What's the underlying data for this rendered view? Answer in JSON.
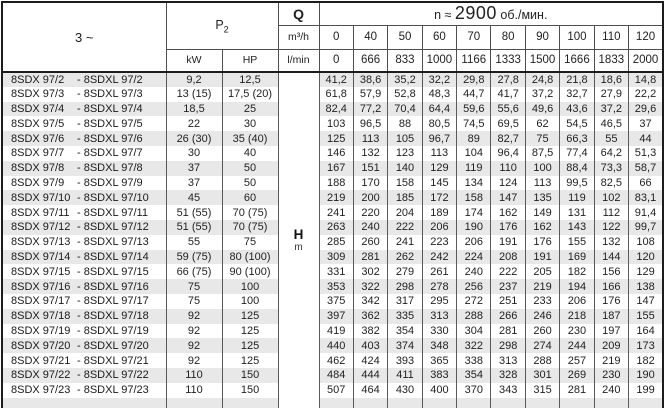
{
  "table": {
    "phase_label": "3 ~",
    "p2_label": "P",
    "p2_sub": "2",
    "kw_label": "kW",
    "hp_label": "HP",
    "q_label": "Q",
    "q_unit_flow": "m³/h",
    "q_unit_lmin": "l/min",
    "speed_prefix": "n ≈",
    "speed_value": "2900",
    "speed_suffix": "об./мин.",
    "head_label": "H",
    "head_unit": "m",
    "flow_values": [
      "0",
      "40",
      "50",
      "60",
      "70",
      "80",
      "90",
      "100",
      "110",
      "120"
    ],
    "lmin_values": [
      "0",
      "666",
      "833",
      "1000",
      "1166",
      "1333",
      "1500",
      "1666",
      "1833",
      "2000"
    ],
    "rows": [
      {
        "model_a": "8SDX 97/2",
        "model_b": "- 8SDXL 97/2",
        "kw": "9,2",
        "hp": "12,5",
        "h": [
          "41,2",
          "38,6",
          "35,2",
          "32,2",
          "29,8",
          "27,8",
          "24,8",
          "21,8",
          "18,6",
          "14,8"
        ]
      },
      {
        "model_a": "8SDX 97/3",
        "model_b": "- 8SDXL 97/3",
        "kw": "13 (15)",
        "hp": "17,5 (20)",
        "h": [
          "61,8",
          "57,9",
          "52,8",
          "48,3",
          "44,7",
          "41,7",
          "37,2",
          "32,7",
          "27,9",
          "22,2"
        ]
      },
      {
        "model_a": "8SDX 97/4",
        "model_b": "- 8SDXL 97/4",
        "kw": "18,5",
        "hp": "25",
        "h": [
          "82,4",
          "77,2",
          "70,4",
          "64,4",
          "59,6",
          "55,6",
          "49,6",
          "43,6",
          "37,2",
          "29,6"
        ]
      },
      {
        "model_a": "8SDX 97/5",
        "model_b": "- 8SDXL 97/5",
        "kw": "22",
        "hp": "30",
        "h": [
          "103",
          "96,5",
          "88",
          "80,5",
          "74,5",
          "69,5",
          "62",
          "54,5",
          "46,5",
          "37"
        ]
      },
      {
        "model_a": "8SDX 97/6",
        "model_b": "- 8SDXL 97/6",
        "kw": "26 (30)",
        "hp": "35 (40)",
        "h": [
          "125",
          "113",
          "105",
          "96,7",
          "89",
          "82,7",
          "75",
          "66,3",
          "55",
          "44"
        ]
      },
      {
        "model_a": "8SDX 97/7",
        "model_b": "- 8SDXL 97/7",
        "kw": "30",
        "hp": "40",
        "h": [
          "146",
          "132",
          "123",
          "113",
          "104",
          "96,4",
          "87,5",
          "77,4",
          "64,2",
          "51,3"
        ]
      },
      {
        "model_a": "8SDX 97/8",
        "model_b": "- 8SDXL 97/8",
        "kw": "37",
        "hp": "50",
        "h": [
          "167",
          "151",
          "140",
          "129",
          "119",
          "110",
          "100",
          "88,4",
          "73,3",
          "58,7"
        ]
      },
      {
        "model_a": "8SDX 97/9",
        "model_b": "- 8SDXL 97/9",
        "kw": "37",
        "hp": "50",
        "h": [
          "188",
          "170",
          "158",
          "145",
          "134",
          "124",
          "113",
          "99,5",
          "82,5",
          "66"
        ]
      },
      {
        "model_a": "8SDX 97/10",
        "model_b": "- 8SDXL 97/10",
        "kw": "45",
        "hp": "60",
        "h": [
          "219",
          "200",
          "185",
          "172",
          "158",
          "147",
          "135",
          "119",
          "102",
          "83,1"
        ]
      },
      {
        "model_a": "8SDX 97/11",
        "model_b": "- 8SDXL 97/11",
        "kw": "51 (55)",
        "hp": "70 (75)",
        "h": [
          "241",
          "220",
          "204",
          "189",
          "174",
          "162",
          "149",
          "131",
          "112",
          "91,4"
        ]
      },
      {
        "model_a": "8SDX 97/12",
        "model_b": "- 8SDXL 97/12",
        "kw": "51 (55)",
        "hp": "70 (75)",
        "h": [
          "263",
          "240",
          "222",
          "206",
          "190",
          "176",
          "162",
          "143",
          "122",
          "99,7"
        ]
      },
      {
        "model_a": "8SDX 97/13",
        "model_b": "- 8SDXL 97/13",
        "kw": "55",
        "hp": "75",
        "h": [
          "285",
          "260",
          "241",
          "223",
          "206",
          "191",
          "176",
          "155",
          "132",
          "108"
        ]
      },
      {
        "model_a": "8SDX 97/14",
        "model_b": "- 8SDXL 97/14",
        "kw": "59 (75)",
        "hp": "80 (100)",
        "h": [
          "309",
          "281",
          "262",
          "242",
          "224",
          "208",
          "191",
          "169",
          "144",
          "120"
        ]
      },
      {
        "model_a": "8SDX 97/15",
        "model_b": "- 8SDXL 97/15",
        "kw": "66 (75)",
        "hp": "90 (100)",
        "h": [
          "331",
          "302",
          "279",
          "261",
          "240",
          "222",
          "205",
          "182",
          "156",
          "129"
        ]
      },
      {
        "model_a": "8SDX 97/16",
        "model_b": "- 8SDXL 97/16",
        "kw": "75",
        "hp": "100",
        "h": [
          "353",
          "322",
          "298",
          "278",
          "256",
          "237",
          "219",
          "194",
          "166",
          "138"
        ]
      },
      {
        "model_a": "8SDX 97/17",
        "model_b": "- 8SDXL 97/17",
        "kw": "75",
        "hp": "100",
        "h": [
          "375",
          "342",
          "317",
          "295",
          "272",
          "251",
          "233",
          "206",
          "176",
          "147"
        ]
      },
      {
        "model_a": "8SDX 97/18",
        "model_b": "- 8SDXL 97/18",
        "kw": "92",
        "hp": "125",
        "h": [
          "397",
          "362",
          "335",
          "313",
          "288",
          "266",
          "246",
          "218",
          "187",
          "155"
        ]
      },
      {
        "model_a": "8SDX 97/19",
        "model_b": "- 8SDXL 97/19",
        "kw": "92",
        "hp": "125",
        "h": [
          "419",
          "382",
          "354",
          "330",
          "304",
          "281",
          "260",
          "230",
          "197",
          "164"
        ]
      },
      {
        "model_a": "8SDX 97/20",
        "model_b": "- 8SDXL 97/20",
        "kw": "92",
        "hp": "125",
        "h": [
          "440",
          "403",
          "374",
          "348",
          "322",
          "298",
          "274",
          "244",
          "209",
          "173"
        ]
      },
      {
        "model_a": "8SDX 97/21",
        "model_b": "- 8SDXL 97/21",
        "kw": "92",
        "hp": "125",
        "h": [
          "462",
          "424",
          "393",
          "365",
          "338",
          "313",
          "288",
          "257",
          "219",
          "182"
        ]
      },
      {
        "model_a": "8SDX 97/22",
        "model_b": "- 8SDXL 97/22",
        "kw": "110",
        "hp": "150",
        "h": [
          "484",
          "444",
          "411",
          "383",
          "354",
          "328",
          "301",
          "269",
          "230",
          "190"
        ]
      },
      {
        "model_a": "8SDX 97/23",
        "model_b": "- 8SDXL 97/23",
        "kw": "110",
        "hp": "150",
        "h": [
          "507",
          "464",
          "430",
          "400",
          "370",
          "343",
          "315",
          "281",
          "240",
          "199"
        ]
      }
    ],
    "colors": {
      "row_shade": "#e8e8e8",
      "border_outer": "#1c1c1c",
      "border_inner": "#5a5a5a",
      "text": "#1f1f1f"
    }
  }
}
